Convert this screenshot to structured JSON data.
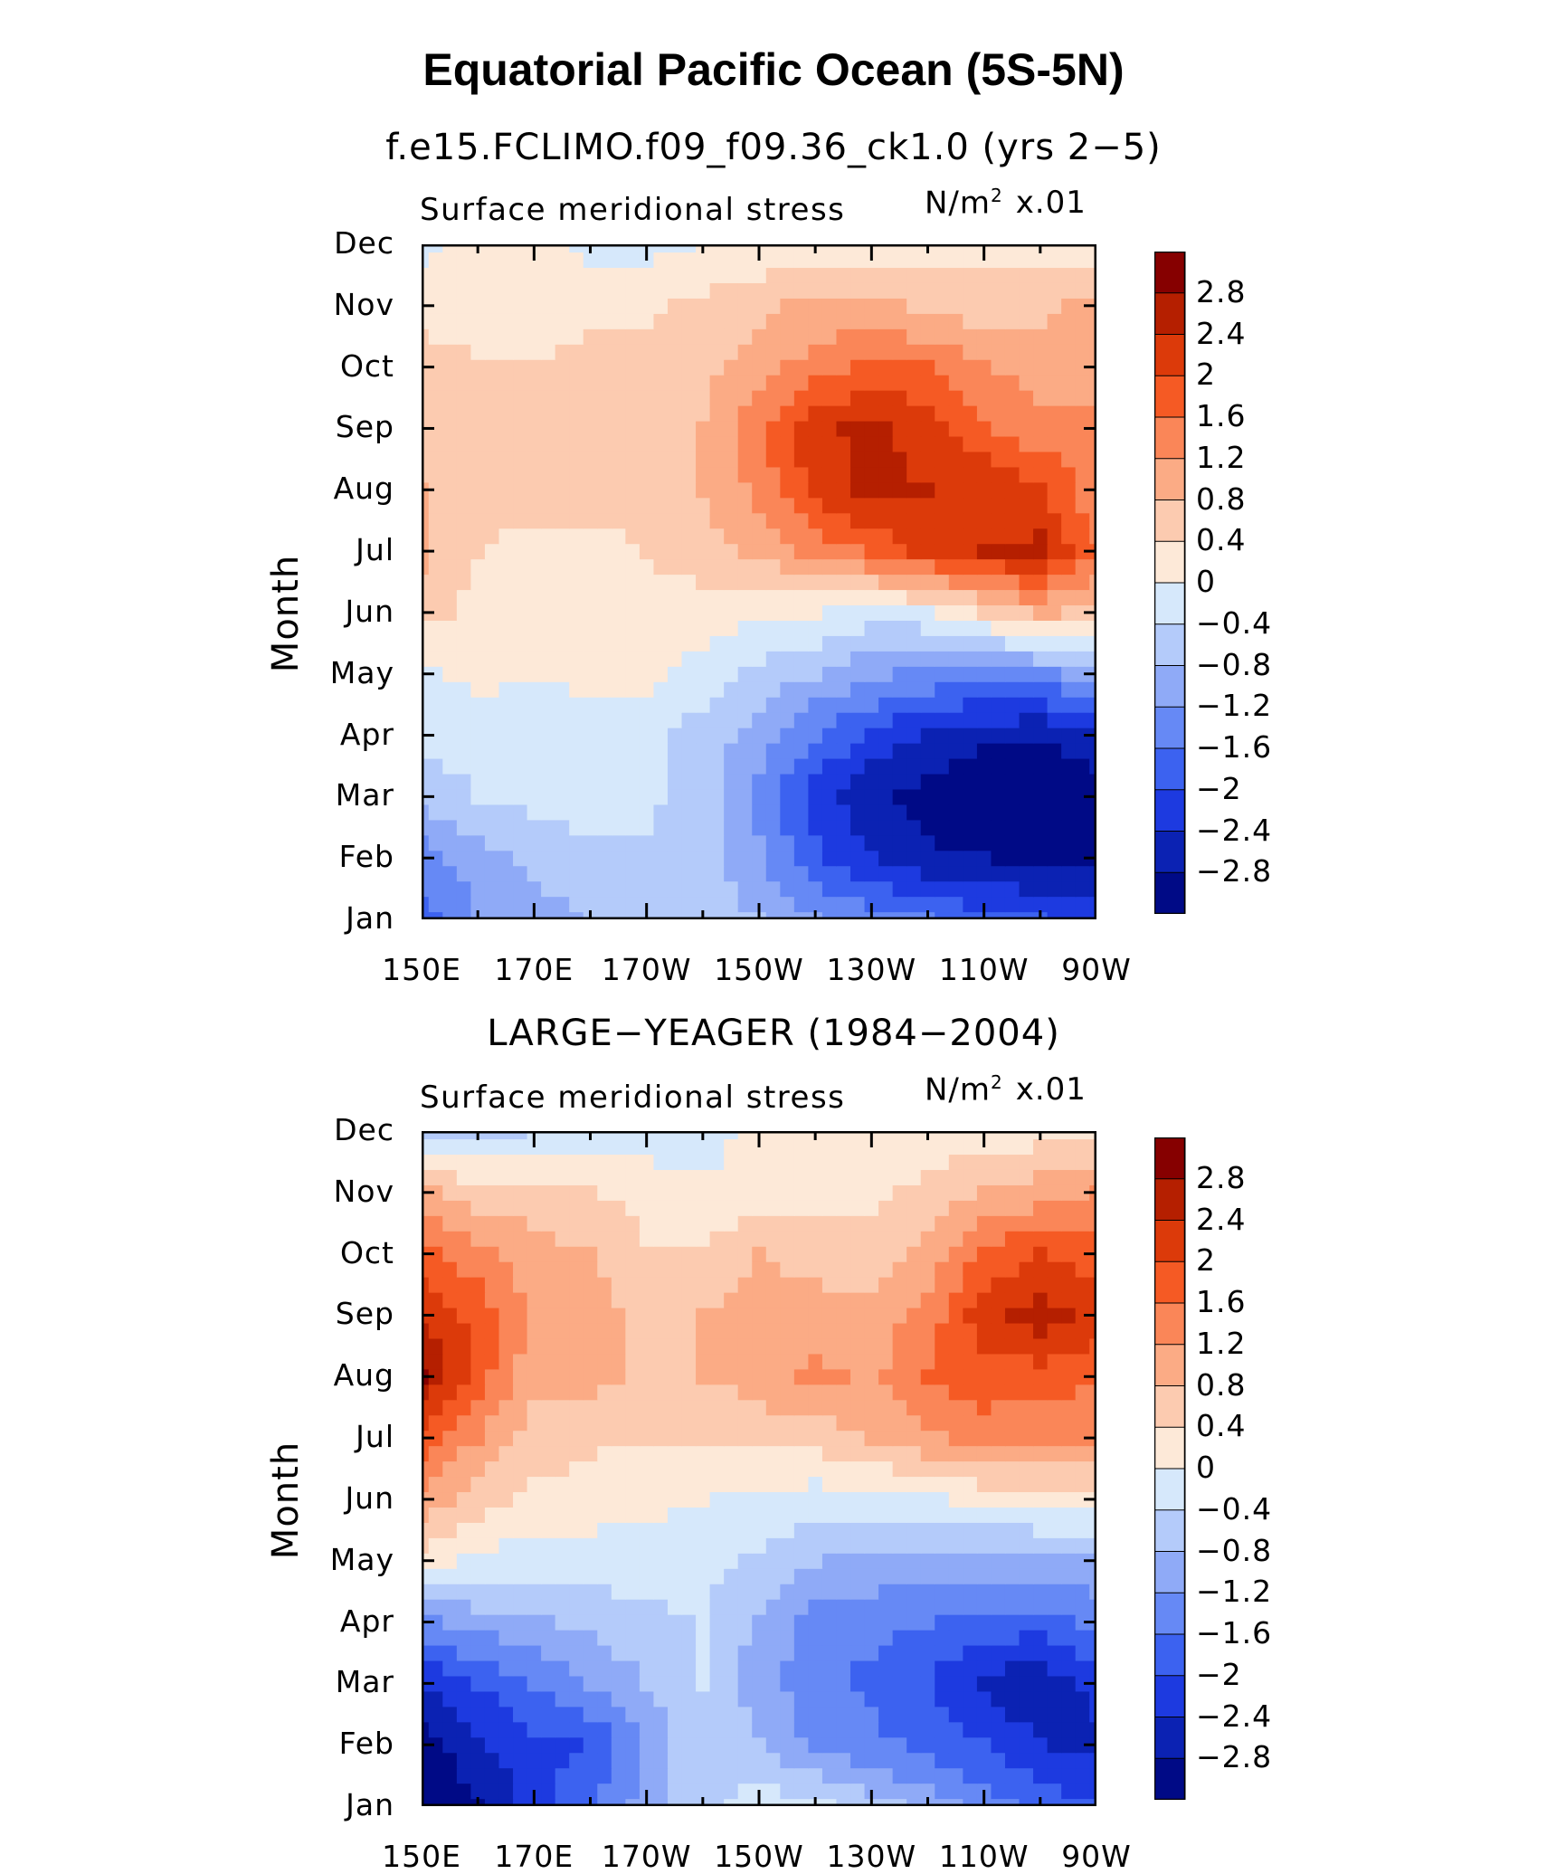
{
  "title": "Equatorial Pacific Ocean (5S-5N)",
  "units": {
    "base": "N/m",
    "exp": "2",
    "scale": "x.01"
  },
  "y_axis_label": "Month",
  "x_ticks": [
    "150E",
    "170E",
    "170W",
    "150W",
    "130W",
    "110W",
    "90W"
  ],
  "y_ticks": [
    "Jan",
    "Feb",
    "Mar",
    "Apr",
    "May",
    "Jun",
    "Jul",
    "Aug",
    "Sep",
    "Oct",
    "Nov",
    "Dec"
  ],
  "colorbar": {
    "labels": [
      "2.8",
      "2.4",
      "2",
      "1.6",
      "1.2",
      "0.8",
      "0.4",
      "0",
      "−0.4",
      "−0.8",
      "−1.2",
      "−1.6",
      "−2",
      "−2.4",
      "−2.8"
    ],
    "colors": [
      "#860000",
      "#b51f00",
      "#dc3a0a",
      "#f55a24",
      "#fa8658",
      "#fbab85",
      "#fccbb0",
      "#fde9d8",
      "#d6e8fb",
      "#b4cbfa",
      "#8faaf7",
      "#6689f5",
      "#3c62f0",
      "#1d3ae0",
      "#0b22b3",
      "#000a86"
    ]
  },
  "chart_data": [
    {
      "type": "heatmap",
      "subtitle": "f.e15.FCLIMO.f09_f09.36_ck1.0 (yrs 2−5)",
      "variable": "Surface meridional stress",
      "xlabel": "",
      "ylabel": "Month",
      "x_range": [
        "150E",
        "90W"
      ],
      "y_range": [
        "Jan",
        "Dec"
      ],
      "levels": [
        -2.8,
        -2.4,
        -2.0,
        -1.6,
        -1.2,
        -0.8,
        -0.4,
        0,
        0.4,
        0.8,
        1.2,
        1.6,
        2.0,
        2.4,
        2.8
      ],
      "x": [
        "150E",
        "160E",
        "170E",
        "180",
        "170W",
        "160W",
        "150W",
        "140W",
        "130W",
        "120W",
        "110W",
        "100W",
        "90W"
      ],
      "y": [
        "Jan",
        "Feb",
        "Mar",
        "Apr",
        "May",
        "Jun",
        "Jul",
        "Aug",
        "Sep",
        "Oct",
        "Nov",
        "Dec"
      ],
      "values": [
        [
          -1.8,
          -1.2,
          -1.0,
          -0.8,
          -0.6,
          -0.6,
          -0.8,
          -1.2,
          -1.4,
          -1.6,
          -1.8,
          -2.0,
          -2.2
        ],
        [
          -1.4,
          -1.0,
          -0.7,
          -0.5,
          -0.5,
          -0.6,
          -1.1,
          -1.9,
          -2.4,
          -2.7,
          -2.8,
          -2.9,
          -2.9
        ],
        [
          -0.7,
          -0.4,
          -0.3,
          -0.2,
          -0.3,
          -0.6,
          -1.4,
          -2.2,
          -2.7,
          -3.0,
          -3.1,
          -3.1,
          -3.0
        ],
        [
          -0.3,
          -0.2,
          -0.2,
          -0.2,
          -0.3,
          -0.6,
          -1.0,
          -1.6,
          -2.1,
          -2.5,
          -2.7,
          -2.8,
          -2.6
        ],
        [
          -0.1,
          0.1,
          0.0,
          0.1,
          0.1,
          -0.2,
          -0.5,
          -0.8,
          -1.1,
          -1.3,
          -1.4,
          -1.3,
          -1.0
        ],
        [
          0.5,
          0.3,
          0.3,
          0.3,
          0.3,
          0.2,
          0.1,
          0.0,
          -0.2,
          -0.1,
          0.4,
          0.9,
          0.6
        ],
        [
          0.9,
          0.4,
          0.3,
          0.3,
          0.4,
          0.6,
          0.9,
          1.3,
          1.7,
          2.1,
          2.4,
          2.5,
          1.6
        ],
        [
          0.8,
          0.6,
          0.5,
          0.5,
          0.6,
          0.8,
          1.3,
          2.1,
          2.5,
          2.4,
          2.3,
          2.1,
          1.3
        ],
        [
          0.7,
          0.5,
          0.4,
          0.6,
          0.7,
          0.8,
          1.5,
          2.3,
          2.5,
          2.2,
          1.7,
          1.3,
          1.4
        ],
        [
          0.6,
          0.4,
          0.4,
          0.5,
          0.6,
          0.7,
          1.0,
          1.4,
          1.7,
          1.6,
          1.2,
          1.0,
          0.9
        ],
        [
          0.2,
          0.3,
          0.3,
          0.3,
          0.3,
          0.5,
          0.7,
          0.9,
          0.9,
          0.7,
          0.6,
          0.7,
          0.9
        ],
        [
          -0.1,
          0.1,
          0.1,
          -0.1,
          -0.1,
          0.0,
          0.1,
          0.1,
          0.1,
          0.2,
          0.2,
          0.2,
          0.2
        ]
      ]
    },
    {
      "type": "heatmap",
      "subtitle": "LARGE−YEAGER (1984−2004)",
      "variable": "Surface meridional stress",
      "xlabel": "",
      "ylabel": "Month",
      "x_range": [
        "150E",
        "90W"
      ],
      "y_range": [
        "Jan",
        "Dec"
      ],
      "levels": [
        -2.8,
        -2.4,
        -2.0,
        -1.6,
        -1.2,
        -0.8,
        -0.4,
        0,
        0.4,
        0.8,
        1.2,
        1.6,
        2.0,
        2.4,
        2.8
      ],
      "x": [
        "150E",
        "160E",
        "170E",
        "180",
        "170W",
        "160W",
        "150W",
        "140W",
        "130W",
        "120W",
        "110W",
        "100W",
        "90W"
      ],
      "y": [
        "Jan",
        "Feb",
        "Mar",
        "Apr",
        "May",
        "Jun",
        "Jul",
        "Aug",
        "Sep",
        "Oct",
        "Nov",
        "Dec"
      ],
      "values": [
        [
          -3.1,
          -2.9,
          -2.2,
          -1.7,
          -1.0,
          -0.5,
          -0.2,
          -0.3,
          -0.6,
          -1.0,
          -1.4,
          -1.8,
          -2.0
        ],
        [
          -3.0,
          -2.5,
          -2.1,
          -2.0,
          -1.1,
          -0.5,
          -0.8,
          -1.3,
          -1.5,
          -1.7,
          -2.0,
          -2.4,
          -2.5
        ],
        [
          -2.4,
          -2.0,
          -1.6,
          -1.2,
          -0.8,
          -0.4,
          -1.0,
          -1.5,
          -1.7,
          -2.0,
          -2.5,
          -2.7,
          -2.3
        ],
        [
          -1.3,
          -1.0,
          -0.9,
          -0.7,
          -0.5,
          -0.4,
          -0.9,
          -1.4,
          -1.5,
          -1.6,
          -1.8,
          -1.8,
          -1.5
        ],
        [
          0.2,
          -0.1,
          -0.2,
          -0.2,
          -0.2,
          -0.3,
          -0.5,
          -0.8,
          -0.9,
          -0.9,
          -1.0,
          -1.0,
          -0.9
        ],
        [
          1.0,
          0.6,
          0.3,
          0.2,
          0.1,
          0.0,
          -0.1,
          -0.2,
          -0.2,
          -0.1,
          0.1,
          0.2,
          0.3
        ],
        [
          1.8,
          1.2,
          0.6,
          0.5,
          0.4,
          0.4,
          0.5,
          0.6,
          0.8,
          1.1,
          1.3,
          1.3,
          1.2
        ],
        [
          2.9,
          1.8,
          0.9,
          0.9,
          0.7,
          0.8,
          1.0,
          1.3,
          1.1,
          1.6,
          1.9,
          1.8,
          1.7
        ],
        [
          2.3,
          1.9,
          1.1,
          1.0,
          0.7,
          0.8,
          1.1,
          1.0,
          0.9,
          1.4,
          2.2,
          2.6,
          2.2
        ],
        [
          1.8,
          1.3,
          1.0,
          0.8,
          0.4,
          0.4,
          0.8,
          0.6,
          0.5,
          0.9,
          1.7,
          2.0,
          1.8
        ],
        [
          0.9,
          0.6,
          0.5,
          0.4,
          0.3,
          0.1,
          0.2,
          0.2,
          0.3,
          0.5,
          0.8,
          1.0,
          1.2
        ],
        [
          -0.6,
          -0.5,
          -0.4,
          -0.4,
          -0.3,
          -0.2,
          0.1,
          0.0,
          0.1,
          0.1,
          0.2,
          0.2,
          0.3
        ]
      ]
    }
  ]
}
